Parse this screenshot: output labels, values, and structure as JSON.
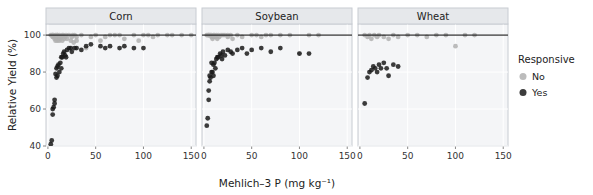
{
  "chart_data": [
    {
      "type": "scatter",
      "title": "Corn",
      "ylabel": "Relative Yield (%)",
      "xlim": [
        -2,
        155
      ],
      "ylim": [
        40,
        106
      ],
      "xticks": [
        0,
        50,
        100,
        150
      ],
      "yticks": [
        40,
        60,
        80,
        100
      ],
      "grid": true,
      "hline": 100,
      "series": [
        {
          "name": "No",
          "color": "#b0b0b0",
          "marker": "circle",
          "x": [
            3,
            4,
            5,
            5,
            5,
            6,
            6,
            7,
            7,
            8,
            8,
            8,
            9,
            9,
            10,
            10,
            10,
            10,
            11,
            11,
            12,
            12,
            13,
            14,
            15,
            15,
            16,
            17,
            18,
            19,
            20,
            22,
            24,
            25,
            26,
            27,
            28,
            30,
            30,
            35,
            40,
            45,
            50,
            55,
            60,
            65,
            70,
            75,
            80,
            90,
            95,
            100,
            105,
            110,
            115,
            125,
            130,
            140,
            150
          ],
          "values": [
            100,
            100,
            100,
            99,
            100,
            99,
            100,
            99,
            98,
            97,
            99,
            100,
            98,
            100,
            97,
            99,
            100,
            100,
            98,
            99,
            97,
            100,
            98,
            99,
            97,
            100,
            100,
            98,
            99,
            100,
            98,
            100,
            97,
            99,
            100,
            96,
            100,
            97,
            99,
            100,
            93,
            99,
            100,
            97,
            99,
            100,
            100,
            100,
            98,
            100,
            97,
            100,
            100,
            99,
            100,
            100,
            100,
            100,
            100
          ]
        },
        {
          "name": "Yes",
          "color": "#1a1a1a",
          "marker": "circle",
          "x": [
            3,
            4,
            5,
            5,
            6,
            7,
            7,
            8,
            9,
            9,
            10,
            10,
            11,
            12,
            13,
            14,
            14,
            15,
            16,
            17,
            18,
            19,
            20,
            22,
            24,
            25,
            28,
            30,
            35,
            40,
            45,
            55,
            60,
            65,
            75,
            80,
            90,
            100
          ],
          "values": [
            41,
            43,
            57,
            60,
            61,
            63,
            65,
            79,
            77,
            82,
            78,
            83,
            84,
            80,
            85,
            82,
            88,
            88,
            90,
            91,
            89,
            88,
            92,
            93,
            93,
            91,
            93,
            93,
            92,
            94,
            95,
            94,
            93,
            94,
            93,
            94,
            93,
            93
          ]
        }
      ]
    },
    {
      "type": "scatter",
      "title": "Soybean",
      "xlabel": "Mehlich–3 P (mg kg⁻¹)",
      "xlim": [
        -2,
        155
      ],
      "ylim": [
        40,
        106
      ],
      "xticks": [
        0,
        50,
        100,
        150
      ],
      "yticks": [
        40,
        60,
        80,
        100
      ],
      "grid": true,
      "hline": 100,
      "tick_labels": "x",
      "series": [
        {
          "name": "No",
          "color": "#b0b0b0",
          "marker": "circle",
          "x": [
            3,
            4,
            5,
            5,
            6,
            7,
            8,
            8,
            9,
            10,
            10,
            11,
            12,
            13,
            14,
            15,
            16,
            18,
            20,
            22,
            25,
            25,
            28,
            30,
            35,
            40,
            50,
            55,
            60,
            65,
            70,
            80,
            90,
            100,
            110,
            120
          ],
          "values": [
            100,
            100,
            100,
            100,
            100,
            100,
            99,
            100,
            98,
            99,
            100,
            100,
            99,
            100,
            98,
            100,
            99,
            100,
            100,
            100,
            99,
            100,
            100,
            98,
            100,
            99,
            100,
            100,
            99,
            100,
            100,
            100,
            100,
            90,
            100,
            100
          ]
        },
        {
          "name": "Yes",
          "color": "#1a1a1a",
          "marker": "circle",
          "x": [
            3,
            4,
            5,
            5,
            6,
            6,
            7,
            8,
            8,
            9,
            10,
            10,
            11,
            12,
            13,
            14,
            15,
            17,
            18,
            19,
            20,
            22,
            25,
            28,
            30,
            35,
            40,
            45,
            50,
            60,
            70,
            80,
            100,
            110
          ],
          "values": [
            51,
            55,
            65,
            70,
            75,
            78,
            77,
            80,
            85,
            80,
            78,
            84,
            85,
            82,
            87,
            88,
            88,
            90,
            89,
            87,
            91,
            89,
            92,
            91,
            90,
            92,
            93,
            90,
            92,
            93,
            91,
            93,
            90,
            90
          ]
        }
      ]
    },
    {
      "type": "scatter",
      "title": "Wheat",
      "xlim": [
        -2,
        155
      ],
      "ylim": [
        40,
        106
      ],
      "xticks": [
        0,
        50,
        100,
        150
      ],
      "yticks": [
        40,
        60,
        80,
        100
      ],
      "grid": true,
      "hline": 100,
      "tick_labels": "x",
      "legend": "right",
      "legend_title": "Responsive",
      "series": [
        {
          "name": "No",
          "color": "#b0b0b0",
          "marker": "circle",
          "x": [
            5,
            8,
            10,
            12,
            15,
            18,
            20,
            25,
            30,
            35,
            40,
            50,
            60,
            70,
            80,
            90,
            100,
            110,
            120
          ],
          "values": [
            100,
            99,
            100,
            98,
            100,
            99,
            100,
            99,
            98,
            100,
            99,
            100,
            100,
            99,
            100,
            100,
            94,
            100,
            100
          ]
        },
        {
          "name": "Yes",
          "color": "#1a1a1a",
          "marker": "circle",
          "x": [
            5,
            8,
            10,
            12,
            14,
            16,
            18,
            20,
            22,
            25,
            28,
            30,
            35,
            40
          ],
          "values": [
            63,
            77,
            80,
            81,
            83,
            82,
            80,
            84,
            82,
            85,
            82,
            78,
            84,
            83
          ]
        }
      ]
    }
  ]
}
